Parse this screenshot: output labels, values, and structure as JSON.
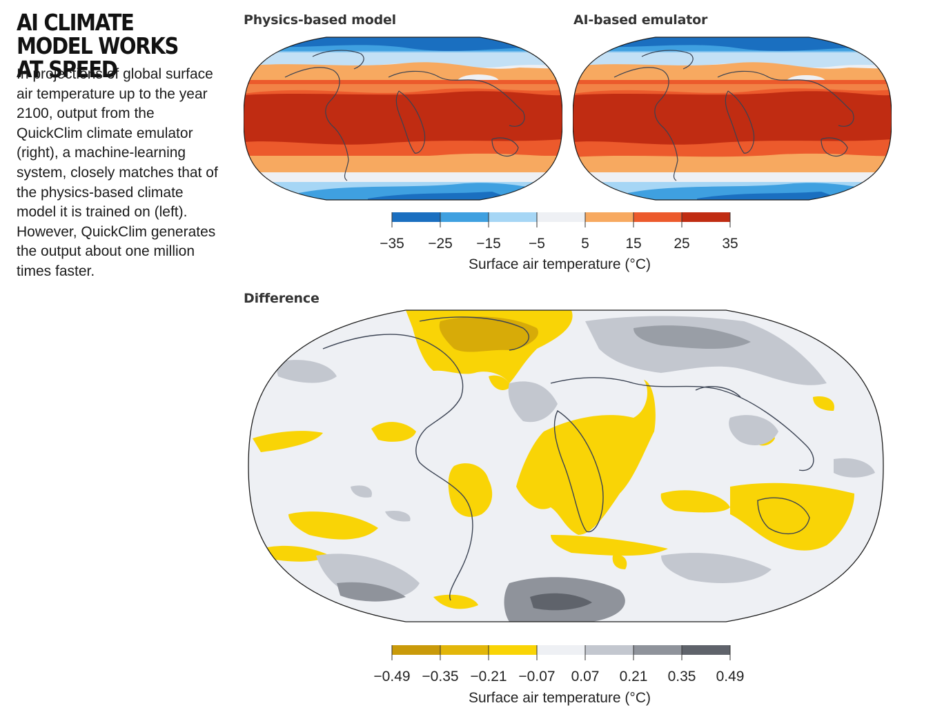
{
  "headline": "AI CLIMATE MODEL WORKS AT SPEED",
  "caption": "In projections of global surface air temperature up to the year 2100, output from the QuickClim climate emulator (right), a machine-learning system, closely matches that of the physics-based climate model it is trained on (left). However, QuickClim generates the output about one million times faster.",
  "panels": {
    "physics": {
      "title": "Physics-based model"
    },
    "ai": {
      "title": "AI-based emulator"
    },
    "difference": {
      "title": "Difference"
    }
  },
  "temperature_legend": {
    "title": "Surface air temperature (°C)",
    "ticks": [
      "−35",
      "−25",
      "−15",
      "−5",
      "5",
      "15",
      "25",
      "35"
    ],
    "colors": [
      "#1a6fc0",
      "#3fa0e0",
      "#a6d6f5",
      "#eef0f4",
      "#f7a960",
      "#ec5a2c",
      "#c02c12"
    ]
  },
  "difference_legend": {
    "title": "Surface air temperature (°C)",
    "ticks": [
      "−0.49",
      "−0.35",
      "−0.21",
      "−0.07",
      "0.07",
      "0.21",
      "0.35",
      "0.49"
    ],
    "colors": [
      "#c99a0a",
      "#e2b60a",
      "#f9d406",
      "#eef0f4",
      "#c3c7cf",
      "#8f939b",
      "#5f636b"
    ]
  },
  "map_colors": {
    "ocean_border": "#1a1a1a",
    "coastline": "#3a4252"
  }
}
